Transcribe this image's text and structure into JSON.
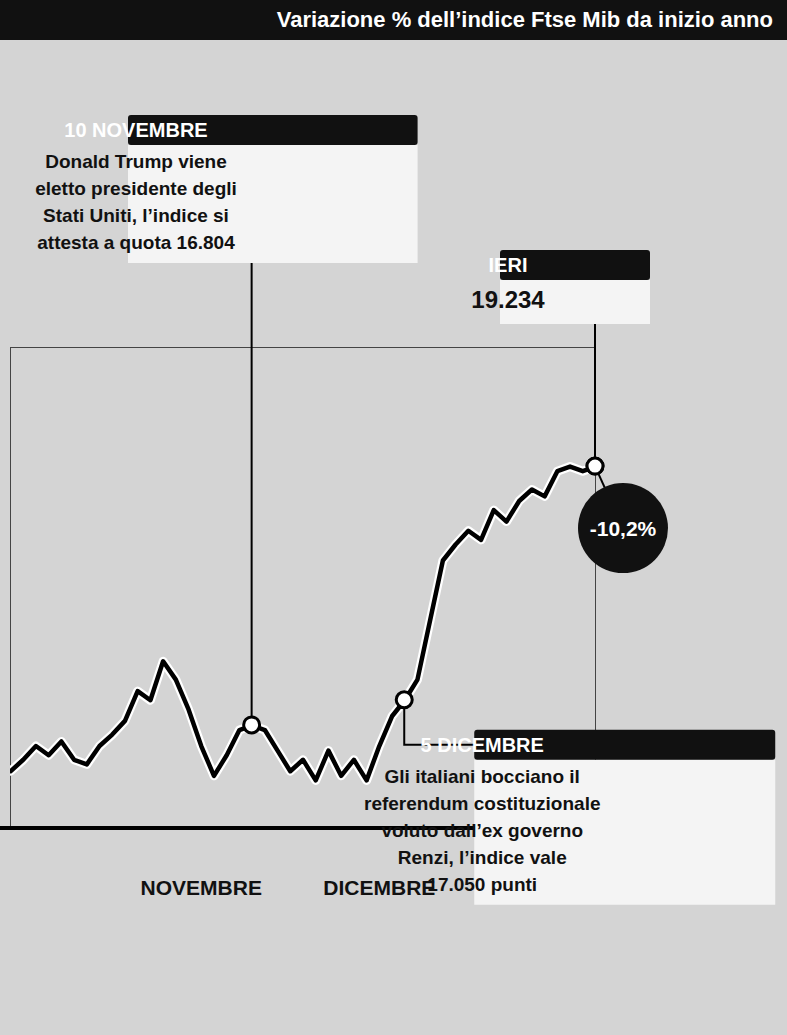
{
  "chart_data": {
    "type": "line",
    "title": "Variazione % dell’indice Ftse Mib da inizio anno",
    "categories": [
      null,
      null,
      null,
      null,
      null,
      null,
      null,
      null,
      null,
      null,
      null,
      null,
      null,
      null,
      null,
      "NOVEMBRE",
      null,
      null,
      null,
      null,
      null,
      null,
      null,
      null,
      null,
      null,
      null,
      null,
      null,
      "DICEMBRE",
      null,
      null,
      null,
      null,
      null,
      null,
      null,
      null,
      null,
      null,
      null,
      null,
      null,
      null,
      null,
      null,
      null
    ],
    "values": [
      -23.5,
      -23.0,
      -22.4,
      -22.8,
      -22.2,
      -23.0,
      -23.2,
      -22.4,
      -21.9,
      -21.3,
      -20.0,
      -20.4,
      -18.7,
      -19.5,
      -20.8,
      -22.4,
      -23.7,
      -22.8,
      -21.7,
      -21.5,
      -21.7,
      -22.6,
      -23.5,
      -23.0,
      -23.9,
      -22.6,
      -23.7,
      -23.0,
      -23.9,
      -22.4,
      -21.1,
      -20.4,
      -19.5,
      -16.9,
      -14.3,
      -13.6,
      -13.0,
      -13.4,
      -12.1,
      -12.6,
      -11.7,
      -11.2,
      -11.5,
      -10.4,
      -10.2,
      -10.4,
      -10.2
    ],
    "value_labels": [
      null,
      null,
      null,
      null,
      null,
      null,
      null,
      null,
      null,
      null,
      null,
      null,
      null,
      null,
      null,
      null,
      null,
      null,
      null,
      null,
      null,
      null,
      null,
      null,
      null,
      null,
      null,
      null,
      null,
      null,
      null,
      null,
      null,
      null,
      null,
      null,
      null,
      null,
      null,
      null,
      null,
      null,
      null,
      null,
      null,
      null,
      "-10,2%"
    ],
    "color": "#000000",
    "ylim": [
      -26,
      -5
    ],
    "yticks": [],
    "tick_labels": "x",
    "annotations": [
      {
        "x": 19,
        "title": "10 NOVEMBRE",
        "text": "Donald Trump viene eletto presidente degli Stati Uniti, l’indice si attesta a quota 16.804"
      },
      {
        "x": 46,
        "title": "IERI",
        "text": "19.234"
      },
      {
        "x": 31,
        "title": "5 DICEMBRE",
        "text": "Gli italiani bocciano il referendum costituzionale voluto dall’ex governo Renzi, l’indice vale 17.050 punti"
      }
    ]
  }
}
